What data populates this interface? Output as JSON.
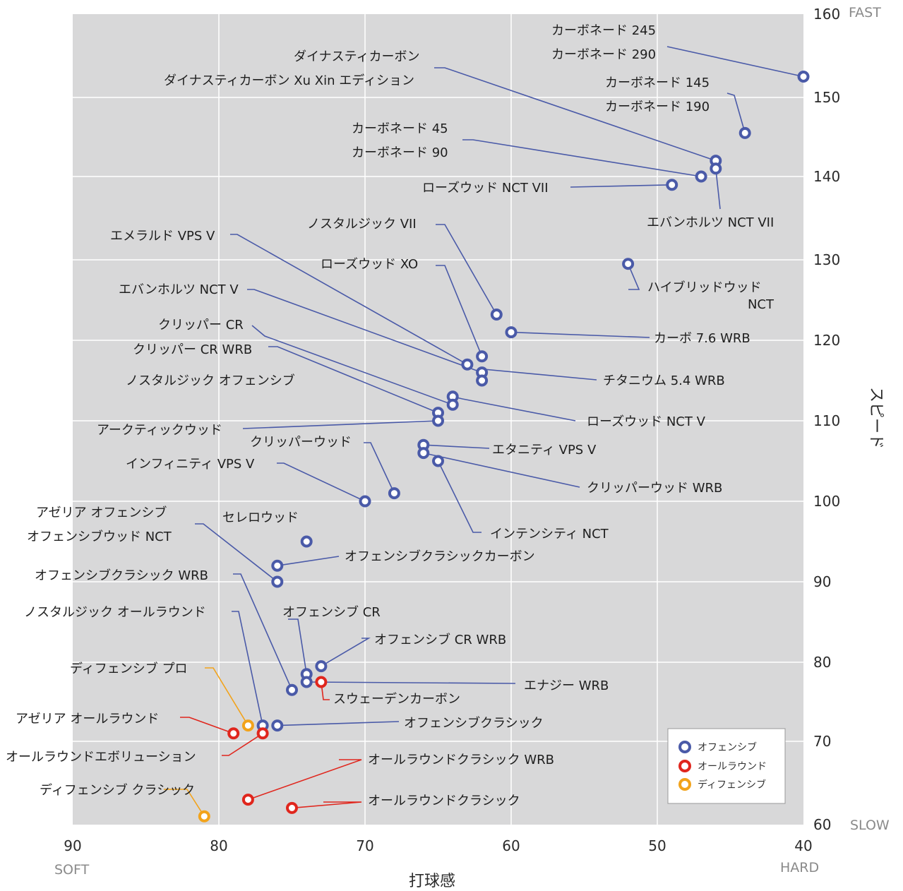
{
  "chart_data": {
    "type": "scatter",
    "title": "",
    "xlabel": "打球感",
    "ylabel": "スピード",
    "x_reversed": true,
    "xlim": [
      90,
      40
    ],
    "ylim": [
      60,
      160
    ],
    "x_ticks": [
      "90",
      "80",
      "70",
      "60",
      "50",
      "40"
    ],
    "y_ticks": [
      "160",
      "150",
      "140",
      "130",
      "120",
      "110",
      "100",
      "90",
      "80",
      "70",
      "60"
    ],
    "x_end_labels": {
      "left": "SOFT",
      "right": "HARD"
    },
    "y_end_labels": {
      "top": "FAST",
      "bottom": "SLOW"
    },
    "grid": true,
    "legend_position": "bottom-right",
    "series": [
      {
        "name": "オフェンシブ",
        "color": "#4a5aa8"
      },
      {
        "name": "オールラウンド",
        "color": "#e0261d"
      },
      {
        "name": "ディフェンシブ",
        "color": "#f2a31b"
      }
    ],
    "points": [
      {
        "label": "カーボネード 245\nカーボネード 290",
        "x": 40,
        "y": 152.5,
        "series": "オフェンシブ"
      },
      {
        "label": "カーボネード 145\nカーボネード 190",
        "x": 44,
        "y": 145.5,
        "series": "オフェンシブ"
      },
      {
        "label": "ダイナスティカーボン",
        "x": 46,
        "y": 142,
        "series": "オフェンシブ"
      },
      {
        "label": "エバンホルツ NCT VII",
        "x": 46,
        "y": 141,
        "series": "オフェンシブ"
      },
      {
        "label": "カーボネード 45\nカーボネード 90",
        "x": 47,
        "y": 140,
        "series": "オフェンシブ"
      },
      {
        "label": "ローズウッド NCT VII",
        "x": 49,
        "y": 139,
        "series": "オフェンシブ"
      },
      {
        "label": "ハイブリッドウッド\nNCT",
        "x": 52,
        "y": 129.5,
        "series": "オフェンシブ"
      },
      {
        "label": "ノスタルジック VII",
        "x": 61,
        "y": 123.2,
        "series": "オフェンシブ"
      },
      {
        "label": "カーボ 7.6 WRB",
        "x": 60,
        "y": 121,
        "series": "オフェンシブ"
      },
      {
        "label": "ローズウッド XO",
        "x": 62,
        "y": 118,
        "series": "オフェンシブ"
      },
      {
        "label": "エメラルド VPS V",
        "x": 63,
        "y": 117,
        "series": "オフェンシブ"
      },
      {
        "label": "エバンホルツ NCT V",
        "x": 62,
        "y": 116,
        "series": "オフェンシブ"
      },
      {
        "label": "チタニウム 5.4 WRB",
        "x": 62,
        "y": 115,
        "series": "オフェンシブ"
      },
      {
        "label": "ローズウッド NCT V",
        "x": 64,
        "y": 113,
        "series": "オフェンシブ"
      },
      {
        "label": "クリッパー CR",
        "x": 64,
        "y": 112,
        "series": "オフェンシブ"
      },
      {
        "label": "クリッパー CR WRB",
        "x": 65,
        "y": 111,
        "series": "オフェンシブ"
      },
      {
        "label": "アークティックウッド",
        "x": 65,
        "y": 110,
        "series": "オフェンシブ"
      },
      {
        "label": "エタニティ VPS V",
        "x": 66,
        "y": 107,
        "series": "オフェンシブ"
      },
      {
        "label": "クリッパーウッド WRB",
        "x": 66,
        "y": 106,
        "series": "オフェンシブ"
      },
      {
        "label": "インテンシティ NCT",
        "x": 65,
        "y": 105,
        "series": "オフェンシブ"
      },
      {
        "label": "クリッパーウッド",
        "x": 68,
        "y": 101,
        "series": "オフェンシブ"
      },
      {
        "label": "インフィニティ VPS V",
        "x": 70,
        "y": 100,
        "series": "オフェンシブ"
      },
      {
        "label": "セレロウッド",
        "x": 74,
        "y": 95,
        "series": "オフェンシブ"
      },
      {
        "label": "オフェンシブクラシックカーボン",
        "x": 76,
        "y": 92,
        "series": "オフェンシブ"
      },
      {
        "label": "アゼリア オフェンシブ\nオフェンシブウッド NCT",
        "x": 76,
        "y": 90,
        "series": "オフェンシブ"
      },
      {
        "label": "オフェンシブ CR WRB",
        "x": 73,
        "y": 79.5,
        "series": "オフェンシブ"
      },
      {
        "label": "オフェンシブ CR",
        "x": 74,
        "y": 78.5,
        "series": "オフェンシブ"
      },
      {
        "label": "エナジー WRB",
        "x": 74,
        "y": 77.5,
        "series": "オフェンシブ"
      },
      {
        "label": "オフェンシブクラシック WRB",
        "x": 75,
        "y": 76.5,
        "series": "オフェンシブ"
      },
      {
        "label": "オフェンシブクラシック",
        "x": 76,
        "y": 72,
        "series": "オフェンシブ"
      },
      {
        "label": "ノスタルジック オールラウンド",
        "x": 77,
        "y": 72,
        "series": "オフェンシブ"
      },
      {
        "label": "スウェーデンカーボン",
        "x": 73,
        "y": 77.5,
        "series": "オールラウンド"
      },
      {
        "label": "アゼリア オールラウンド",
        "x": 79,
        "y": 71,
        "series": "オールラウンド"
      },
      {
        "label": "オールラウンドエボリューション",
        "x": 77,
        "y": 71,
        "series": "オールラウンド"
      },
      {
        "label": "オールラウンドクラシック WRB",
        "x": 78,
        "y": 63,
        "series": "オールラウンド"
      },
      {
        "label": "オールラウンドクラシック",
        "x": 75,
        "y": 62,
        "series": "オールラウンド"
      },
      {
        "label": "ディフェンシブ プロ",
        "x": 78,
        "y": 72,
        "series": "ディフェンシブ"
      },
      {
        "label": "ディフェンシブ クラシック",
        "x": 81,
        "y": 61,
        "series": "ディフェンシブ"
      }
    ]
  },
  "labels": [
    "カーボネード 245",
    "カーボネード 290",
    "ダイナスティカーボン",
    "ダイナスティカーボン Xu Xin エディション",
    "カーボネード 145",
    "カーボネード 190",
    "カーボネード 45",
    "カーボネード 90",
    "ローズウッド NCT VII",
    "エバンホルツ NCT VII",
    "ノスタルジック VII",
    "エメラルド VPS V",
    "ローズウッド XO",
    "ハイブリッドウッド",
    "NCT",
    "エバンホルツ NCT V",
    "カーボ 7.6 WRB",
    "クリッパー CR",
    "クリッパー CR WRB",
    "ノスタルジック オフェンシブ",
    "チタニウム 5.4 WRB",
    "ローズウッド NCT V",
    "アークティックウッド",
    "クリッパーウッド",
    "エタニティ VPS V",
    "インフィニティ VPS V",
    "クリッパーウッド WRB",
    "アゼリア オフェンシブ",
    "セレロウッド",
    "オフェンシブウッド NCT",
    "インテンシティ NCT",
    "オフェンシブクラシックカーボン",
    "オフェンシブクラシック WRB",
    "オフェンシブ CR",
    "ノスタルジック オールラウンド",
    "オフェンシブ CR WRB",
    "ディフェンシブ プロ",
    "エナジー WRB",
    "スウェーデンカーボン",
    "アゼリア オールラウンド",
    "オフェンシブクラシック",
    "オールラウンドエボリューション",
    "オールラウンドクラシック WRB",
    "ディフェンシブ クラシック",
    "オールラウンドクラシック"
  ],
  "legend": [
    "オフェンシブ",
    "オールラウンド",
    "ディフェンシブ"
  ]
}
